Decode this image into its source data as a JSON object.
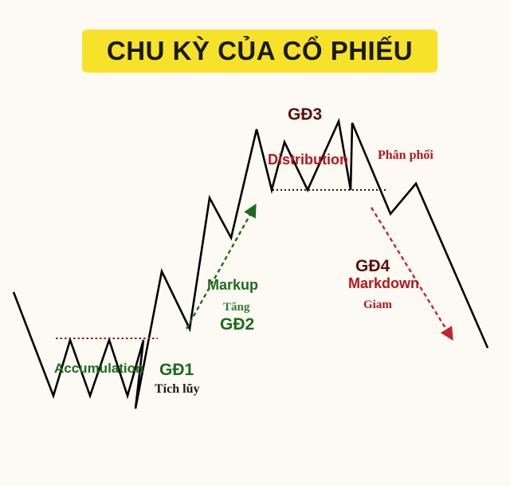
{
  "title": "CHU KỲ CỦA CỔ PHIẾU",
  "colors": {
    "title_bg": "#f7e22a",
    "green": "#1e6b1e",
    "red": "#b3171d",
    "dark_red": "#5a1010",
    "line": "#000000"
  },
  "phases": {
    "gd1": {
      "code": "GĐ1",
      "name": "Accumulation",
      "vi": "Tích lũy"
    },
    "gd2": {
      "code": "GĐ2",
      "name": "Markup",
      "vi": "Tăng"
    },
    "gd3": {
      "code": "GĐ3",
      "name": "Distribution",
      "vi": "Phân phối"
    },
    "gd4": {
      "code": "GĐ4",
      "name": "Markdown",
      "vi": "Giam"
    }
  }
}
